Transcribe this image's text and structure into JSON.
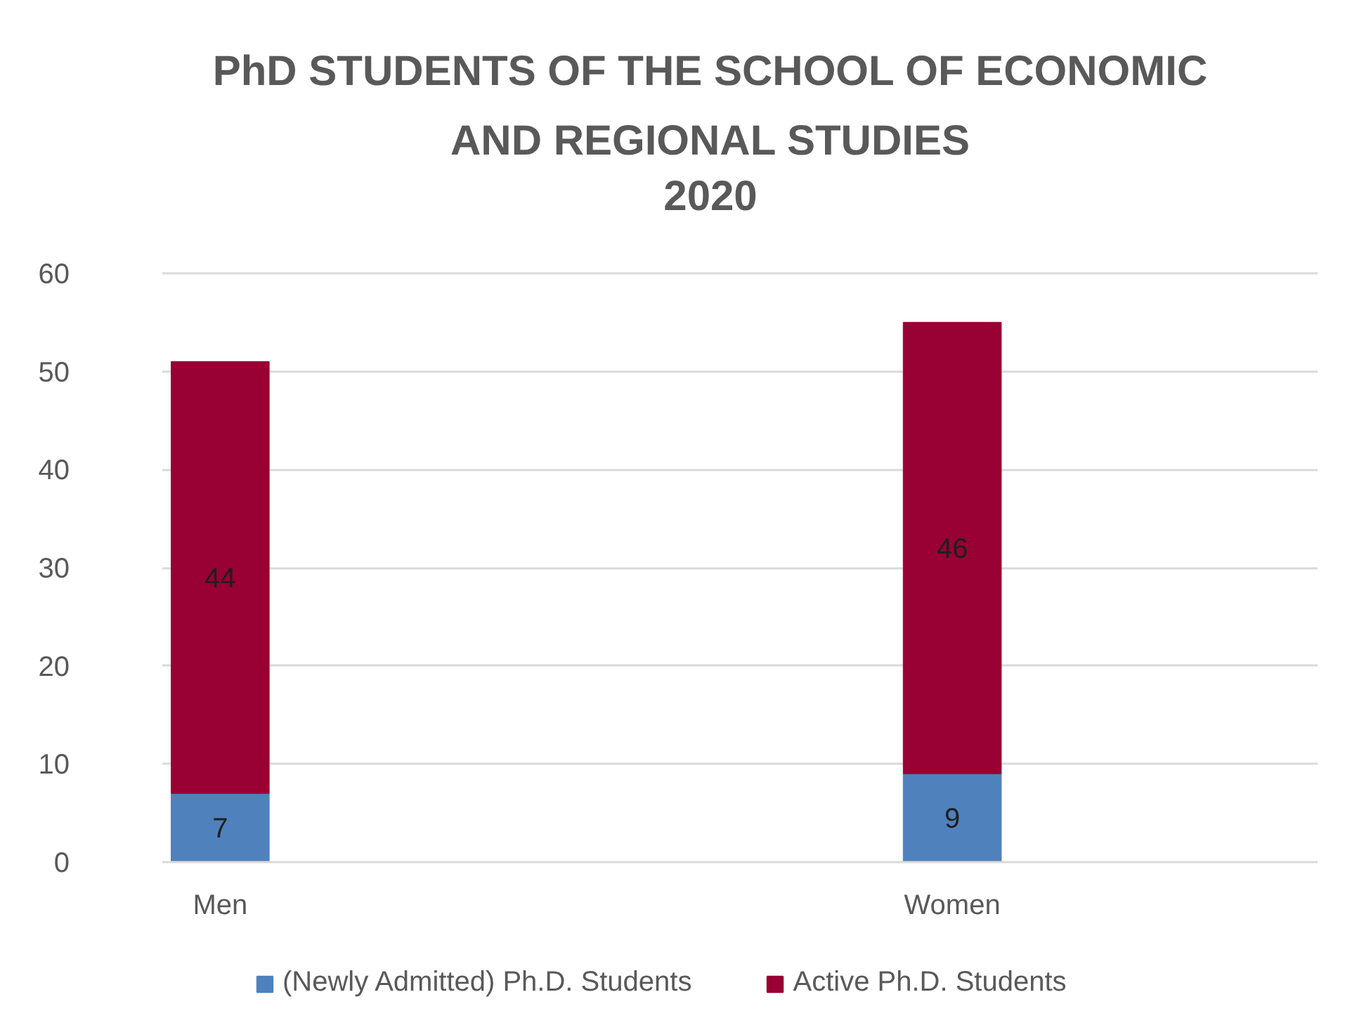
{
  "chart_data": {
    "type": "bar",
    "title": "PhD STUDENTS OF THE SCHOOL OF ECONOMIC AND REGIONAL STUDIES",
    "subtitle": "2020",
    "categories": [
      "Men",
      "Women"
    ],
    "stacked": true,
    "series": [
      {
        "name": "(Newly Admitted) Ph.D. Students",
        "color": "#4f81bd",
        "values": [
          7,
          9
        ]
      },
      {
        "name": "Active Ph.D. Students",
        "color": "#990033",
        "values": [
          44,
          46
        ]
      }
    ],
    "ylim": [
      0,
      60
    ],
    "yticks": [
      0,
      10,
      20,
      30,
      40,
      50,
      60
    ],
    "grid": "y",
    "legend": "bottom",
    "data_labels": true
  }
}
